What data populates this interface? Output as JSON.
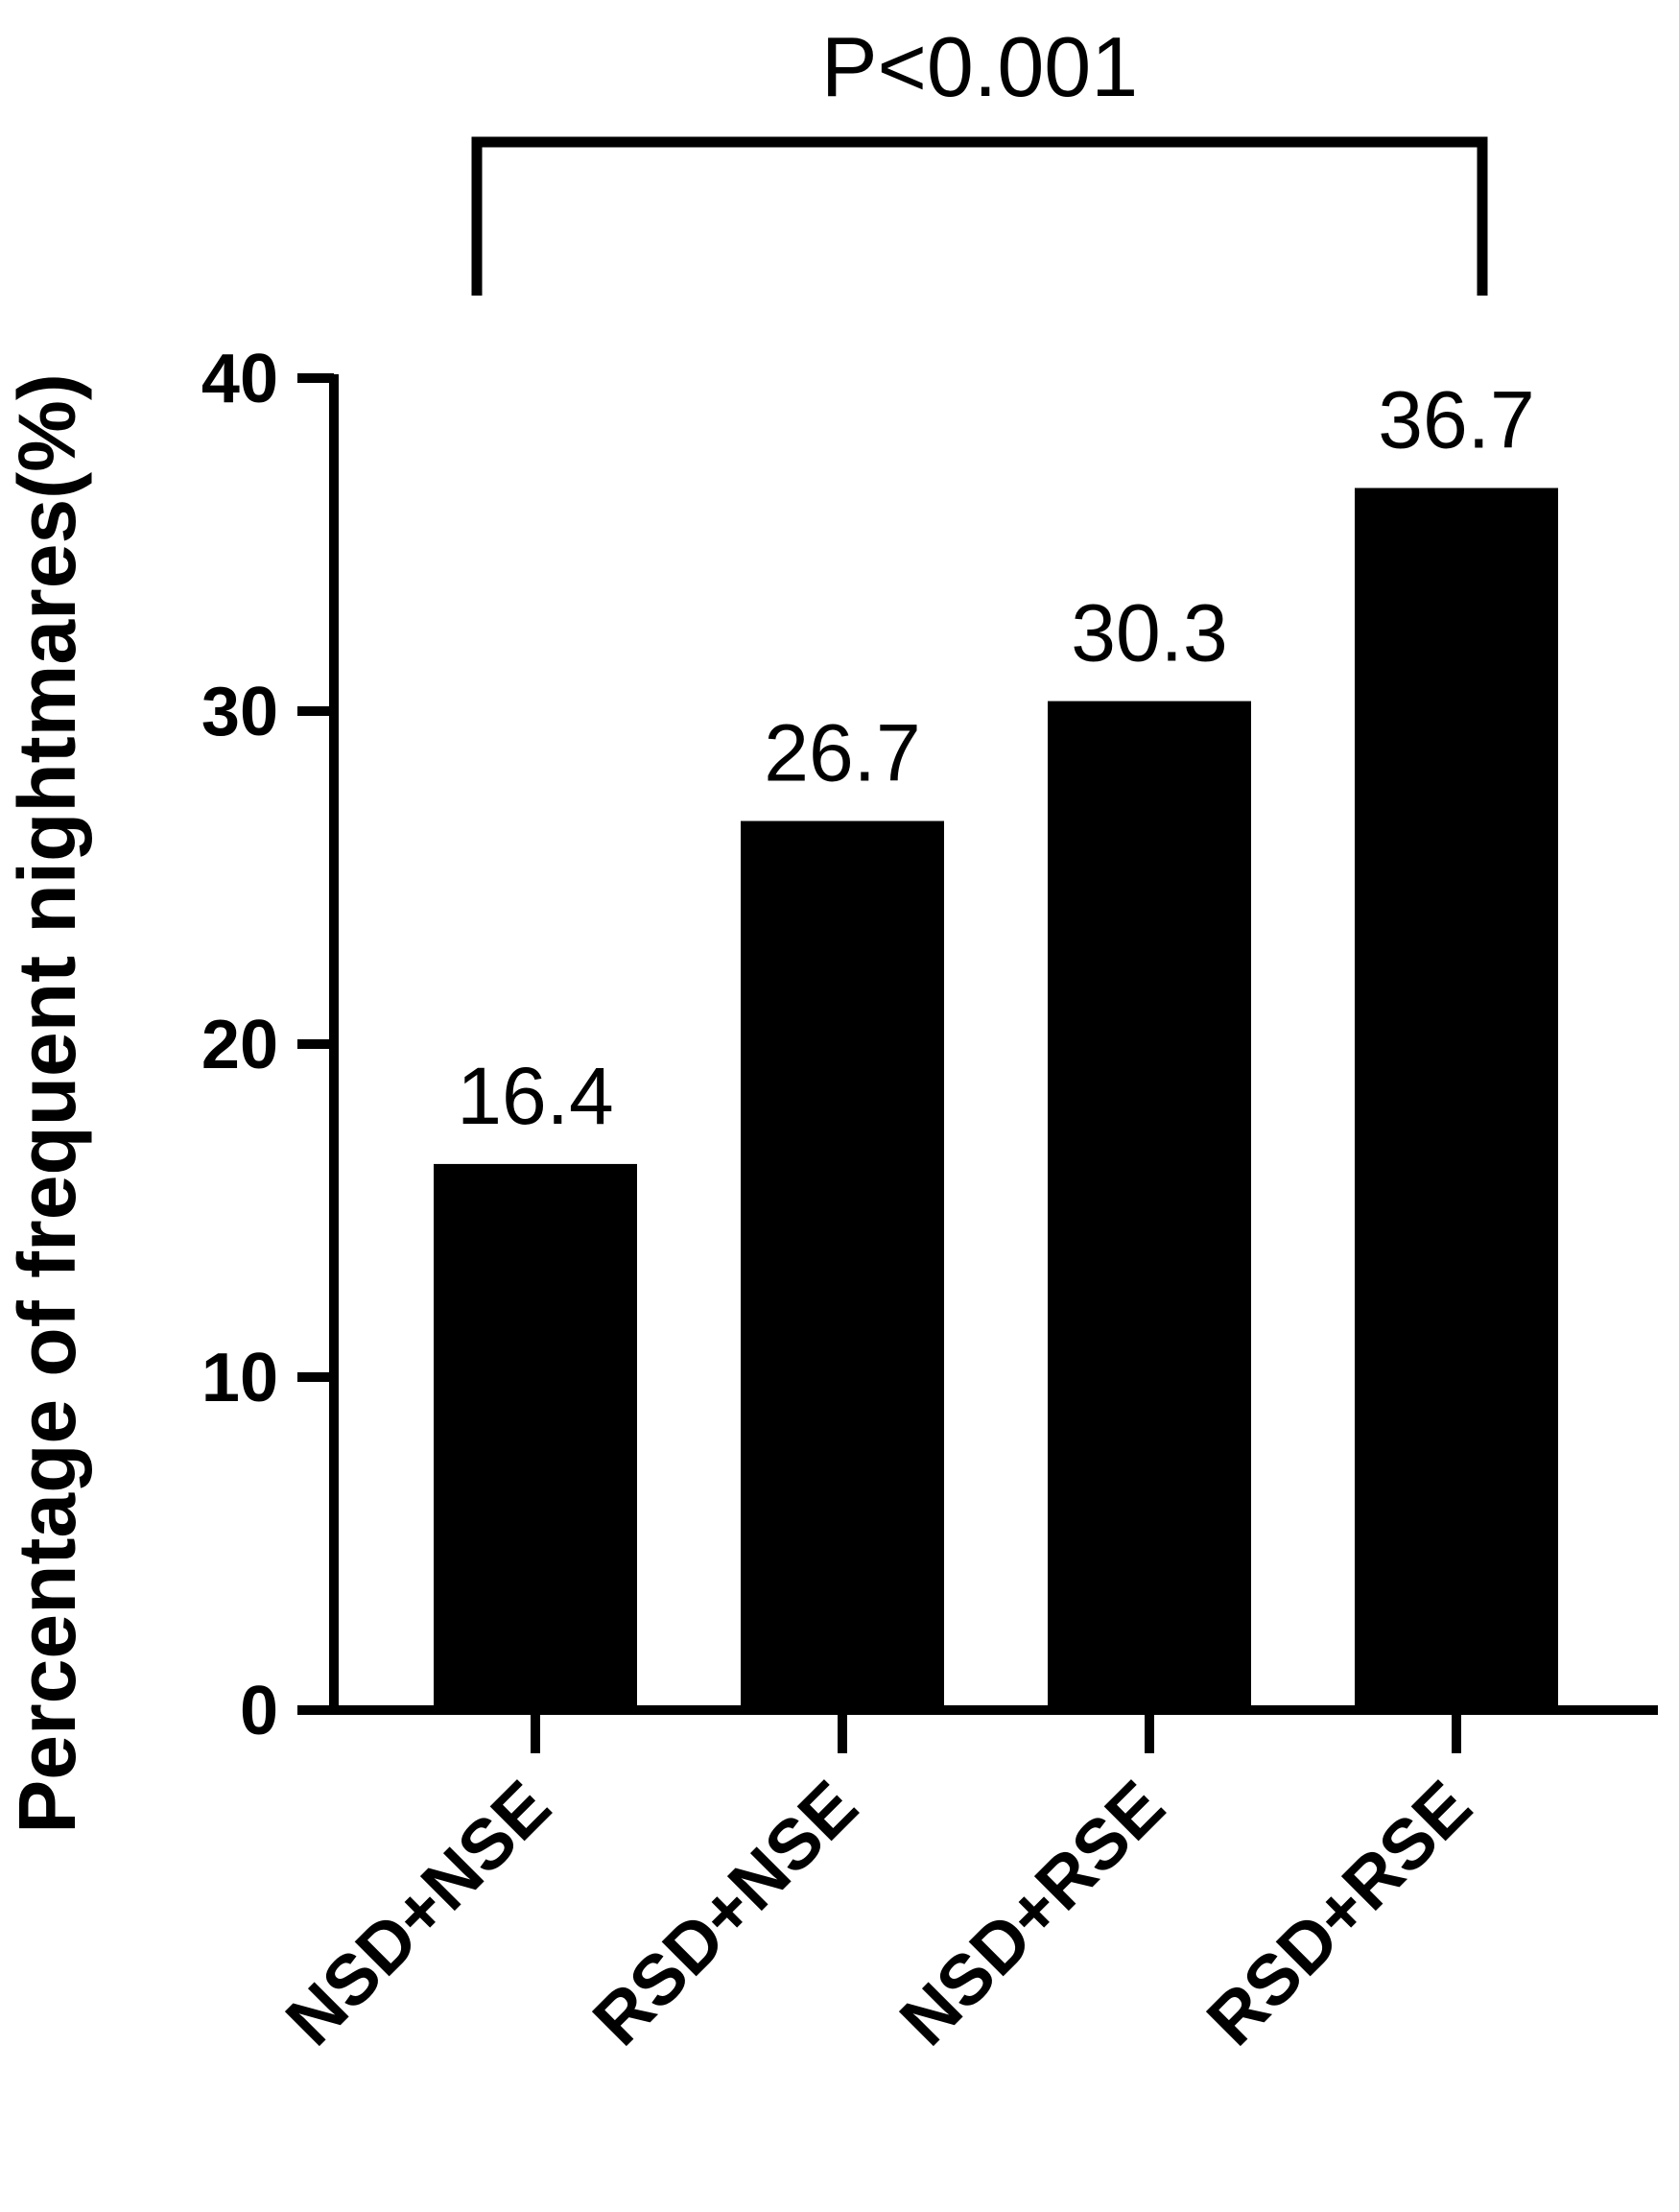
{
  "chart_data": {
    "type": "bar",
    "categories": [
      "NSD+NSE",
      "RSD+NSE",
      "NSD+RSE",
      "RSD+RSE"
    ],
    "values": [
      16.4,
      26.7,
      30.3,
      36.7
    ],
    "value_labels": [
      "16.4",
      "26.7",
      "30.3",
      "36.7"
    ],
    "title": "",
    "xlabel": "",
    "ylabel": "Percentage of frequent nightmares(%)",
    "ylim": [
      0,
      40
    ],
    "yticks": [
      0,
      10,
      20,
      30,
      40
    ],
    "ytick_labels": [
      "0",
      "10",
      "20",
      "30",
      "40"
    ],
    "grid": false,
    "bar_color": "#000000",
    "significance": {
      "from_category": "NSD+NSE",
      "to_category": "RSD+RSE",
      "label": "P<0.001"
    }
  }
}
